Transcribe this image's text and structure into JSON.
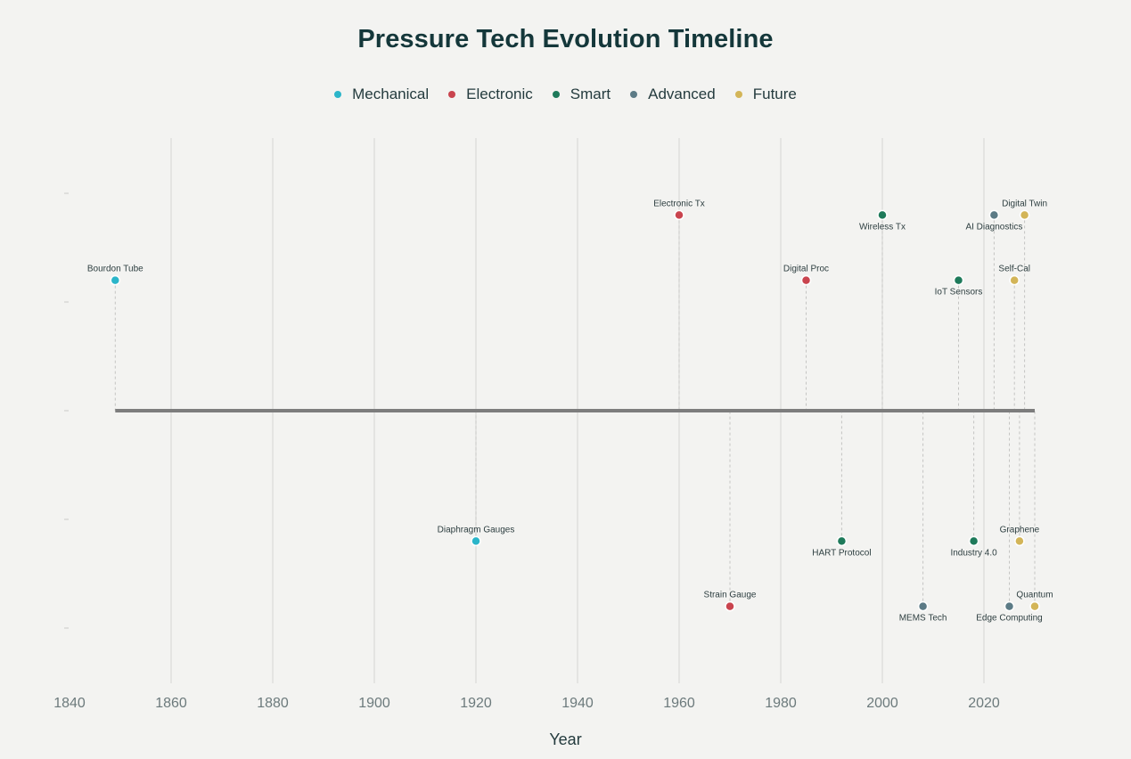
{
  "chart_data": {
    "type": "scatter",
    "title": "Pressure Tech Evolution Timeline",
    "xlabel": "Year",
    "ylabel": "",
    "xlim": [
      1840,
      2032
    ],
    "ylim": [
      -3,
      3
    ],
    "x_ticks": [
      1840,
      1860,
      1880,
      1900,
      1920,
      1940,
      1960,
      1980,
      2000,
      2020
    ],
    "legend": [
      {
        "name": "Mechanical",
        "color": "#2bb5c9"
      },
      {
        "name": "Electronic",
        "color": "#c9444e"
      },
      {
        "name": "Smart",
        "color": "#1e7a5a"
      },
      {
        "name": "Advanced",
        "color": "#5c7b86"
      },
      {
        "name": "Future",
        "color": "#d3b558"
      }
    ],
    "events": [
      {
        "name": "Bourdon Tube",
        "year": 1849,
        "level": 1.2,
        "category": "Mechanical",
        "label_pos": "above"
      },
      {
        "name": "Diaphragm Gauges",
        "year": 1920,
        "level": -1.2,
        "category": "Mechanical",
        "label_pos": "above"
      },
      {
        "name": "Electronic Tx",
        "year": 1960,
        "level": 1.8,
        "category": "Electronic",
        "label_pos": "above"
      },
      {
        "name": "Strain Gauge",
        "year": 1970,
        "level": -1.8,
        "category": "Electronic",
        "label_pos": "above"
      },
      {
        "name": "Digital Proc",
        "year": 1985,
        "level": 1.2,
        "category": "Electronic",
        "label_pos": "above"
      },
      {
        "name": "HART Protocol",
        "year": 1992,
        "level": -1.2,
        "category": "Smart",
        "label_pos": "below"
      },
      {
        "name": "Wireless Tx",
        "year": 2000,
        "level": 1.8,
        "category": "Smart",
        "label_pos": "below"
      },
      {
        "name": "MEMS Tech",
        "year": 2008,
        "level": -1.8,
        "category": "Advanced",
        "label_pos": "below"
      },
      {
        "name": "IoT Sensors",
        "year": 2015,
        "level": 1.2,
        "category": "Smart",
        "label_pos": "below"
      },
      {
        "name": "Industry 4.0",
        "year": 2018,
        "level": -1.2,
        "category": "Smart",
        "label_pos": "below"
      },
      {
        "name": "AI Diagnostics",
        "year": 2022,
        "level": 1.8,
        "category": "Advanced",
        "label_pos": "below"
      },
      {
        "name": "Edge Computing",
        "year": 2025,
        "level": -1.8,
        "category": "Advanced",
        "label_pos": "below"
      },
      {
        "name": "Self-Cal",
        "year": 2026,
        "level": 1.2,
        "category": "Future",
        "label_pos": "above"
      },
      {
        "name": "Graphene",
        "year": 2027,
        "level": -1.2,
        "category": "Future",
        "label_pos": "above"
      },
      {
        "name": "Digital Twin",
        "year": 2028,
        "level": 1.8,
        "category": "Future",
        "label_pos": "above"
      },
      {
        "name": "Quantum",
        "year": 2030,
        "level": -1.8,
        "category": "Future",
        "label_pos": "above"
      }
    ],
    "baseline": {
      "from": 1849,
      "to": 2030,
      "level": 0
    },
    "grid": true
  }
}
